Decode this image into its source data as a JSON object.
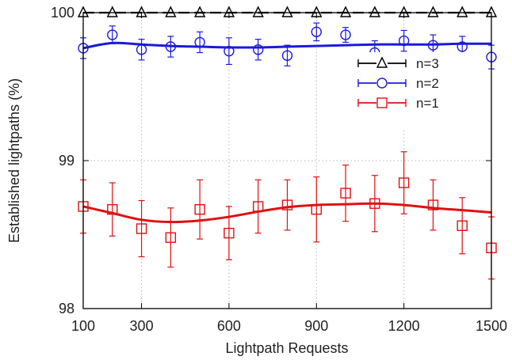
{
  "chart_data": {
    "type": "line",
    "xlabel": "Lightpath Requests",
    "ylabel": "Established lightpaths (%)",
    "xlim": [
      100,
      1500
    ],
    "ylim": [
      98,
      100
    ],
    "x_ticks": [
      100,
      300,
      600,
      900,
      1200,
      1500
    ],
    "x_tick_labels": [
      "100",
      "300",
      "600",
      "900",
      "1200",
      "1500"
    ],
    "y_ticks": [
      98,
      99,
      100
    ],
    "y_tick_labels": [
      "98",
      "99",
      "100"
    ],
    "grid": true,
    "legend_position": "top-right",
    "series": [
      {
        "name": "n=3",
        "color": "#000000",
        "marker": "triangle",
        "x": [
          100,
          200,
          300,
          400,
          500,
          600,
          700,
          800,
          900,
          1000,
          1100,
          1200,
          1300,
          1400,
          1500
        ],
        "values": [
          100,
          100,
          100,
          100,
          100,
          100,
          100,
          100,
          100,
          100,
          100,
          100,
          100,
          100,
          100
        ],
        "error": [
          0,
          0,
          0,
          0,
          0,
          0,
          0,
          0,
          0,
          0,
          0,
          0,
          0,
          0,
          0
        ],
        "trend": [
          100,
          100,
          100,
          100,
          100,
          100,
          100,
          100,
          100,
          100,
          100,
          100,
          100,
          100,
          100
        ]
      },
      {
        "name": "n=2",
        "color": "#1a1adb",
        "marker": "circle",
        "x": [
          100,
          200,
          300,
          400,
          500,
          600,
          700,
          800,
          900,
          1000,
          1100,
          1200,
          1300,
          1400,
          1500
        ],
        "values": [
          99.76,
          99.85,
          99.75,
          99.77,
          99.8,
          99.74,
          99.75,
          99.71,
          99.87,
          99.85,
          99.73,
          99.81,
          99.78,
          99.77,
          99.7
        ],
        "error": [
          0.07,
          0.06,
          0.07,
          0.07,
          0.07,
          0.09,
          0.07,
          0.07,
          0.06,
          0.05,
          0.08,
          0.07,
          0.07,
          0.07,
          0.08
        ],
        "trend": [
          99.76,
          99.795,
          99.785,
          99.775,
          99.77,
          99.765,
          99.765,
          99.77,
          99.775,
          99.78,
          99.785,
          99.785,
          99.785,
          99.79,
          99.79
        ]
      },
      {
        "name": "n=1",
        "color": "#e01010",
        "marker": "square",
        "x": [
          100,
          200,
          300,
          400,
          500,
          600,
          700,
          800,
          900,
          1000,
          1100,
          1200,
          1300,
          1400,
          1500
        ],
        "values": [
          98.69,
          98.67,
          98.54,
          98.48,
          98.67,
          98.51,
          98.69,
          98.7,
          98.67,
          98.78,
          98.71,
          98.85,
          98.7,
          98.56,
          98.41
        ],
        "error": [
          0.18,
          0.18,
          0.19,
          0.2,
          0.2,
          0.18,
          0.18,
          0.17,
          0.22,
          0.19,
          0.19,
          0.21,
          0.17,
          0.19,
          0.21
        ],
        "trend": [
          98.69,
          98.645,
          98.6,
          98.585,
          98.595,
          98.62,
          98.655,
          98.685,
          98.7,
          98.705,
          98.71,
          98.7,
          98.68,
          98.665,
          98.65
        ]
      }
    ]
  }
}
